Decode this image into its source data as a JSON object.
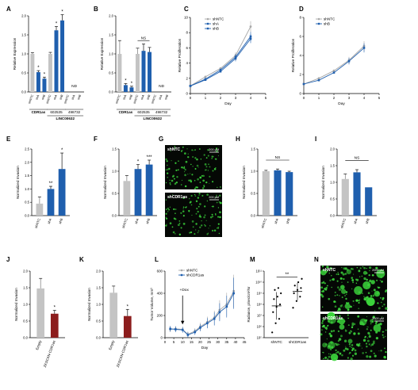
{
  "colors": {
    "gray": "#c4c4c4",
    "blue": "#1f5fae",
    "red": "#8c1d1d",
    "green": "#3cd63c",
    "axis": "#000000",
    "lightgray": "#a8a8a8"
  },
  "chart_data": [
    {
      "panel": "A",
      "type": "bar",
      "ylabel": "Relative Expression",
      "ylim": [
        0,
        2.0
      ],
      "yticks": [
        0,
        0.5,
        1.0,
        1.5,
        2.0
      ],
      "categories": [
        "shNTC",
        "shA",
        "shB",
        "shNTC",
        "shA",
        "shB",
        "shNTC",
        "shA",
        "shB"
      ],
      "values": [
        1.0,
        0.52,
        0.35,
        1.0,
        1.62,
        1.88,
        0,
        0,
        0
      ],
      "errors": [
        0.03,
        0.04,
        0.04,
        0.04,
        0.1,
        0.15,
        0,
        0,
        0
      ],
      "bar_colors": [
        "gray",
        "blue",
        "blue",
        "gray",
        "blue",
        "blue",
        "gray",
        "blue",
        "blue"
      ],
      "stars": [
        "",
        "*",
        "*",
        "",
        "*",
        "*",
        "",
        "",
        ""
      ],
      "annotations": [
        "ND"
      ],
      "groups": [
        {
          "label": "CDR1as",
          "from": 0,
          "to": 2
        },
        {
          "label": "602535",
          "from": 3,
          "to": 5
        },
        {
          "label": "498732",
          "from": 6,
          "to": 8
        }
      ],
      "supergroup": {
        "label": "LINC00632",
        "from": 3,
        "to": 8
      }
    },
    {
      "panel": "B",
      "type": "bar",
      "ylabel": "Relative Expression",
      "ylim": [
        0,
        2.0
      ],
      "yticks": [
        0,
        0.5,
        1.0,
        1.5,
        2.0
      ],
      "categories": [
        "shNTC",
        "shA",
        "shB",
        "shNTC",
        "shA",
        "shB",
        "shNTC",
        "shA",
        "shB"
      ],
      "values": [
        1.0,
        0.18,
        0.12,
        1.0,
        1.08,
        1.05,
        0,
        0,
        0
      ],
      "errors": [
        0.35,
        0.04,
        0.03,
        0.15,
        0.18,
        0.12,
        0,
        0,
        0
      ],
      "bar_colors": [
        "gray",
        "blue",
        "blue",
        "gray",
        "blue",
        "blue",
        "gray",
        "blue",
        "blue"
      ],
      "stars": [
        "",
        "*",
        "*",
        "",
        "",
        "",
        "",
        "",
        ""
      ],
      "annotations": [
        "NS",
        "ND"
      ],
      "groups": [
        {
          "label": "CDR1as",
          "from": 0,
          "to": 2
        },
        {
          "label": "602535",
          "from": 3,
          "to": 5
        },
        {
          "label": "498732",
          "from": 6,
          "to": 8
        }
      ],
      "supergroup": {
        "label": "LINC00632",
        "from": 3,
        "to": 8
      }
    },
    {
      "panel": "C",
      "type": "line",
      "xlabel": "Day",
      "ylabel": "Relative Proliferation",
      "xlim": [
        0,
        5
      ],
      "ylim": [
        0,
        10
      ],
      "xticks": [
        0,
        1,
        2,
        3,
        4,
        5
      ],
      "yticks": [
        0,
        2,
        4,
        6,
        8,
        10
      ],
      "x": [
        0,
        1,
        2,
        3,
        4
      ],
      "series": [
        {
          "name": "shNTC",
          "color": "lightgray",
          "values": [
            1,
            2.2,
            3.3,
            5,
            8.8
          ]
        },
        {
          "name": "shA",
          "color": "blue",
          "values": [
            1,
            1.9,
            3.1,
            4.8,
            7.5
          ]
        },
        {
          "name": "shB",
          "color": "blue",
          "values": [
            1,
            1.8,
            2.9,
            4.6,
            7.2
          ]
        }
      ]
    },
    {
      "panel": "D",
      "type": "line",
      "xlabel": "Day",
      "ylabel": "Relative Proliferation",
      "xlim": [
        0,
        5
      ],
      "ylim": [
        0,
        8
      ],
      "xticks": [
        0,
        1,
        2,
        3,
        4,
        5
      ],
      "yticks": [
        0,
        2,
        4,
        6,
        8
      ],
      "x": [
        0,
        1,
        2,
        3,
        4
      ],
      "series": [
        {
          "name": "shNTC",
          "color": "lightgray",
          "values": [
            1,
            1.6,
            2.4,
            3.5,
            5.0
          ]
        },
        {
          "name": "shB",
          "color": "blue",
          "values": [
            1,
            1.4,
            2.2,
            3.4,
            4.8
          ]
        }
      ]
    },
    {
      "panel": "E",
      "type": "bar",
      "ylabel": "Normalized Invasion",
      "ylim": [
        0,
        2.5
      ],
      "yticks": [
        0,
        0.5,
        1.0,
        1.5,
        2.0,
        2.5
      ],
      "categories": [
        "shNTC",
        "shA",
        "shB"
      ],
      "values": [
        0.45,
        1.0,
        1.75
      ],
      "errors": [
        0.25,
        0.1,
        0.6
      ],
      "bar_colors": [
        "gray",
        "blue",
        "blue"
      ],
      "stars": [
        "",
        "**",
        "*"
      ]
    },
    {
      "panel": "F",
      "type": "bar",
      "ylabel": "Normalized Invasion",
      "ylim": [
        0,
        1.5
      ],
      "yticks": [
        0,
        0.5,
        1.0,
        1.5
      ],
      "categories": [
        "shNTC",
        "shA",
        "shB"
      ],
      "values": [
        0.78,
        1.05,
        1.15
      ],
      "errors": [
        0.12,
        0.1,
        0.1
      ],
      "bar_colors": [
        "gray",
        "blue",
        "blue"
      ],
      "stars": [
        "",
        "*",
        "***"
      ]
    },
    {
      "panel": "H",
      "type": "bar",
      "ylabel": "Normalized Invasion",
      "ylim": [
        0,
        1.5
      ],
      "yticks": [
        0,
        0.5,
        1.0,
        1.5
      ],
      "categories": [
        "shNTC",
        "shA",
        "shB"
      ],
      "values": [
        1.0,
        1.02,
        0.98
      ],
      "errors": [
        0.02,
        0.03,
        0.02
      ],
      "bar_colors": [
        "gray",
        "blue",
        "blue"
      ],
      "stars": [
        "",
        "",
        ""
      ],
      "annotations": [
        "NS"
      ]
    },
    {
      "panel": "I",
      "type": "bar",
      "ylabel": "Normalized Invasion",
      "ylim": [
        0,
        2.0
      ],
      "yticks": [
        0,
        0.5,
        1.0,
        1.5,
        2.0
      ],
      "categories": [
        "shNTC",
        "shA",
        "shB"
      ],
      "values": [
        1.1,
        1.3,
        0.85
      ],
      "errors": [
        0.15,
        0.08,
        0.0
      ],
      "bar_colors": [
        "gray",
        "blue",
        "blue"
      ],
      "stars": [
        "",
        "",
        ""
      ],
      "annotations": [
        "NS"
      ]
    },
    {
      "panel": "J",
      "type": "bar",
      "ylabel": "Normalized Invasion",
      "ylim": [
        0,
        2.0
      ],
      "yticks": [
        0,
        0.5,
        1.0,
        1.5,
        2.0
      ],
      "categories": [
        "Empty",
        "ZKSCAN-CDR1as"
      ],
      "values": [
        1.48,
        0.72
      ],
      "errors": [
        0.3,
        0.1
      ],
      "bar_colors": [
        "gray",
        "red"
      ],
      "stars": [
        "",
        "*"
      ]
    },
    {
      "panel": "K",
      "type": "bar",
      "ylabel": "Normalized Invasion",
      "ylim": [
        0,
        2.0
      ],
      "yticks": [
        0,
        0.5,
        1.0,
        1.5,
        2.0
      ],
      "categories": [
        "Empty",
        "ZKSCAN-CDR1as"
      ],
      "values": [
        1.35,
        0.65
      ],
      "errors": [
        0.2,
        0.2
      ],
      "bar_colors": [
        "gray",
        "red"
      ],
      "stars": [
        "",
        "*"
      ]
    },
    {
      "panel": "L",
      "type": "line",
      "xlabel": "Day",
      "ylabel": "Tumor Volume, mm³",
      "xlim": [
        0,
        45
      ],
      "ylim": [
        0,
        600
      ],
      "xticks": [
        0,
        5,
        10,
        15,
        20,
        25,
        30,
        35,
        40,
        45
      ],
      "yticks": [
        0,
        200,
        400,
        600
      ],
      "x": [
        3,
        6,
        10,
        13,
        17,
        20,
        24,
        28,
        31,
        35,
        39
      ],
      "series": [
        {
          "name": "shNTC",
          "color": "lightgray",
          "values": [
            75,
            80,
            75,
            30,
            60,
            100,
            140,
            180,
            250,
            300,
            420
          ]
        },
        {
          "name": "shCDR1as",
          "color": "blue",
          "values": [
            80,
            75,
            70,
            25,
            50,
            90,
            130,
            170,
            230,
            280,
            400
          ]
        }
      ],
      "annotations": [
        "+Dox"
      ]
    },
    {
      "panel": "M",
      "type": "scatter",
      "ylabel": "Radiance, p/sec/cm²/sr",
      "yscale": "log",
      "ylim": [
        100000,
        100000000000
      ],
      "ytick_labels": [
        "10⁵",
        "10⁶",
        "10⁷",
        "10⁸",
        "10⁹",
        "10¹⁰",
        "10¹¹"
      ],
      "categories": [
        "shNTC",
        "shCDR1as"
      ],
      "series": [
        {
          "name": "shNTC",
          "values": [
            300000,
            2000000,
            5000000,
            20000000,
            60000000,
            100000000,
            300000000,
            500000000,
            1000000000,
            2000000000,
            3000000000
          ]
        },
        {
          "name": "shCDR1as",
          "values": [
            50000000,
            200000000,
            500000000,
            1000000000,
            2000000000,
            3000000000,
            5000000000,
            10000000000,
            20000000000
          ]
        }
      ],
      "annotations": [
        "**"
      ]
    }
  ],
  "panels": {
    "letters": [
      "A",
      "B",
      "C",
      "D",
      "E",
      "F",
      "G",
      "H",
      "I",
      "J",
      "K",
      "L",
      "M",
      "N"
    ]
  },
  "micro": {
    "g_top": "shNTC",
    "g_bottom": "shCDR1as",
    "g_scale": "200 µM",
    "n_top": "shNTC",
    "n_bottom": "shCDR1as",
    "n_scale": "2000 µM"
  },
  "nd": "ND"
}
